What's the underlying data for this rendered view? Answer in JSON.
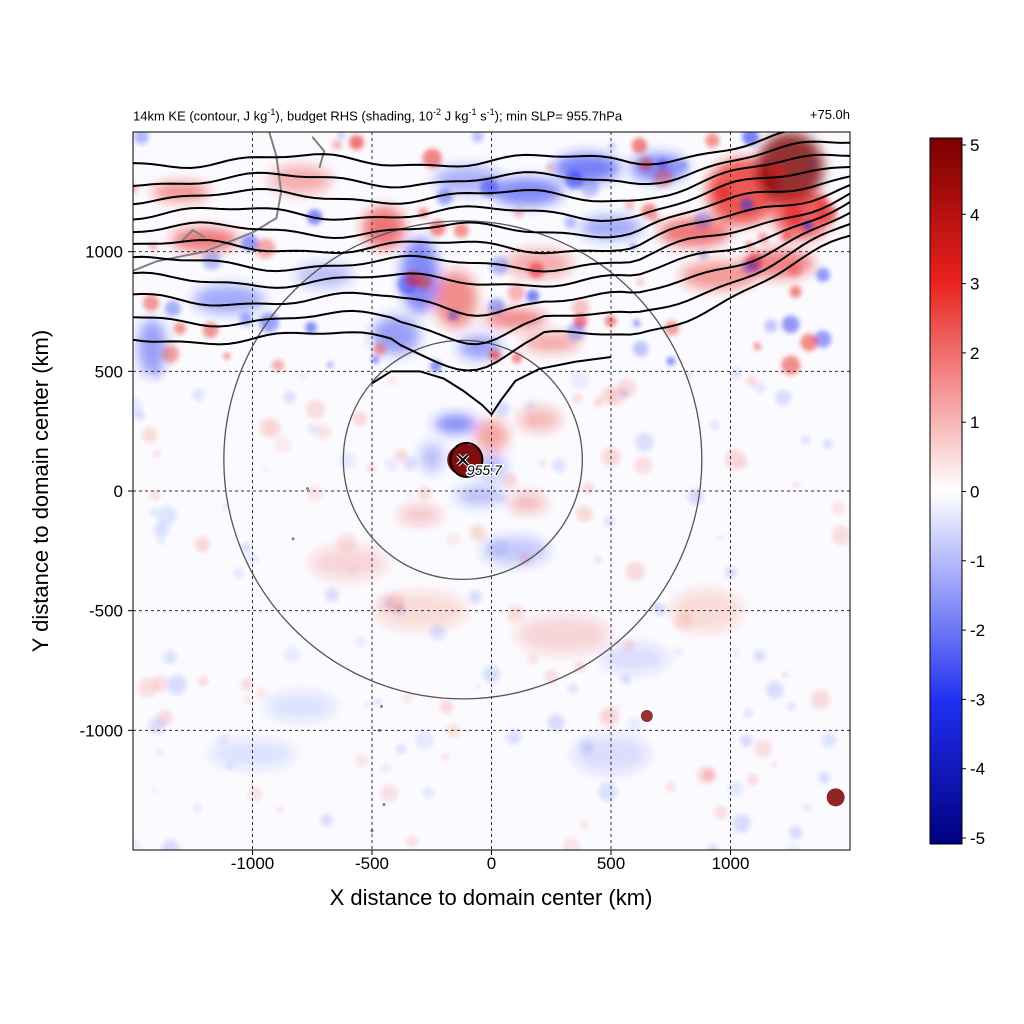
{
  "title": {
    "parts": [
      {
        "t": "14km KE (contour, J kg"
      },
      {
        "t": "-1",
        "sup": true
      },
      {
        "t": "), budget RHS (shading, 10"
      },
      {
        "t": "-2",
        "sup": true
      },
      {
        "t": " J kg"
      },
      {
        "t": "-1",
        "sup": true
      },
      {
        "t": " s"
      },
      {
        "t": "-1",
        "sup": true
      },
      {
        "t": "); min SLP= 955.7hPa"
      }
    ],
    "right": "+75.0h"
  },
  "colors": {
    "positive_max": "#7a0000",
    "positive": "#e8201c",
    "neutral": "#ffffff",
    "negative": "#1f2ff0",
    "negative_max": "#000080",
    "contour": "#000000",
    "coastline": "#808080",
    "range_circle": "#555555"
  },
  "chart_data": {
    "type": "heatmap",
    "xlabel": "X distance to domain center (km)",
    "ylabel": "Y distance to domain center (km)",
    "xlim": [
      -1500,
      1500
    ],
    "ylim": [
      -1500,
      1500
    ],
    "xticks": [
      -1000,
      -500,
      0,
      500,
      1000
    ],
    "yticks": [
      -1000,
      -500,
      0,
      500,
      1000
    ],
    "grid": true,
    "colorbar": {
      "min": -5,
      "max": 5,
      "ticks": [
        5,
        4,
        3,
        2,
        1,
        0,
        -1,
        -2,
        -3,
        -4,
        -5
      ]
    },
    "storm_center": {
      "x": -120,
      "y": 130,
      "label": "955.7"
    },
    "range_circles_km": [
      500,
      1000
    ],
    "ke_contours_y": [
      1380,
      1300,
      1230,
      1160,
      1090,
      1020,
      950,
      880,
      800,
      720,
      640
    ],
    "ke_contour_levels_note": ""
  }
}
